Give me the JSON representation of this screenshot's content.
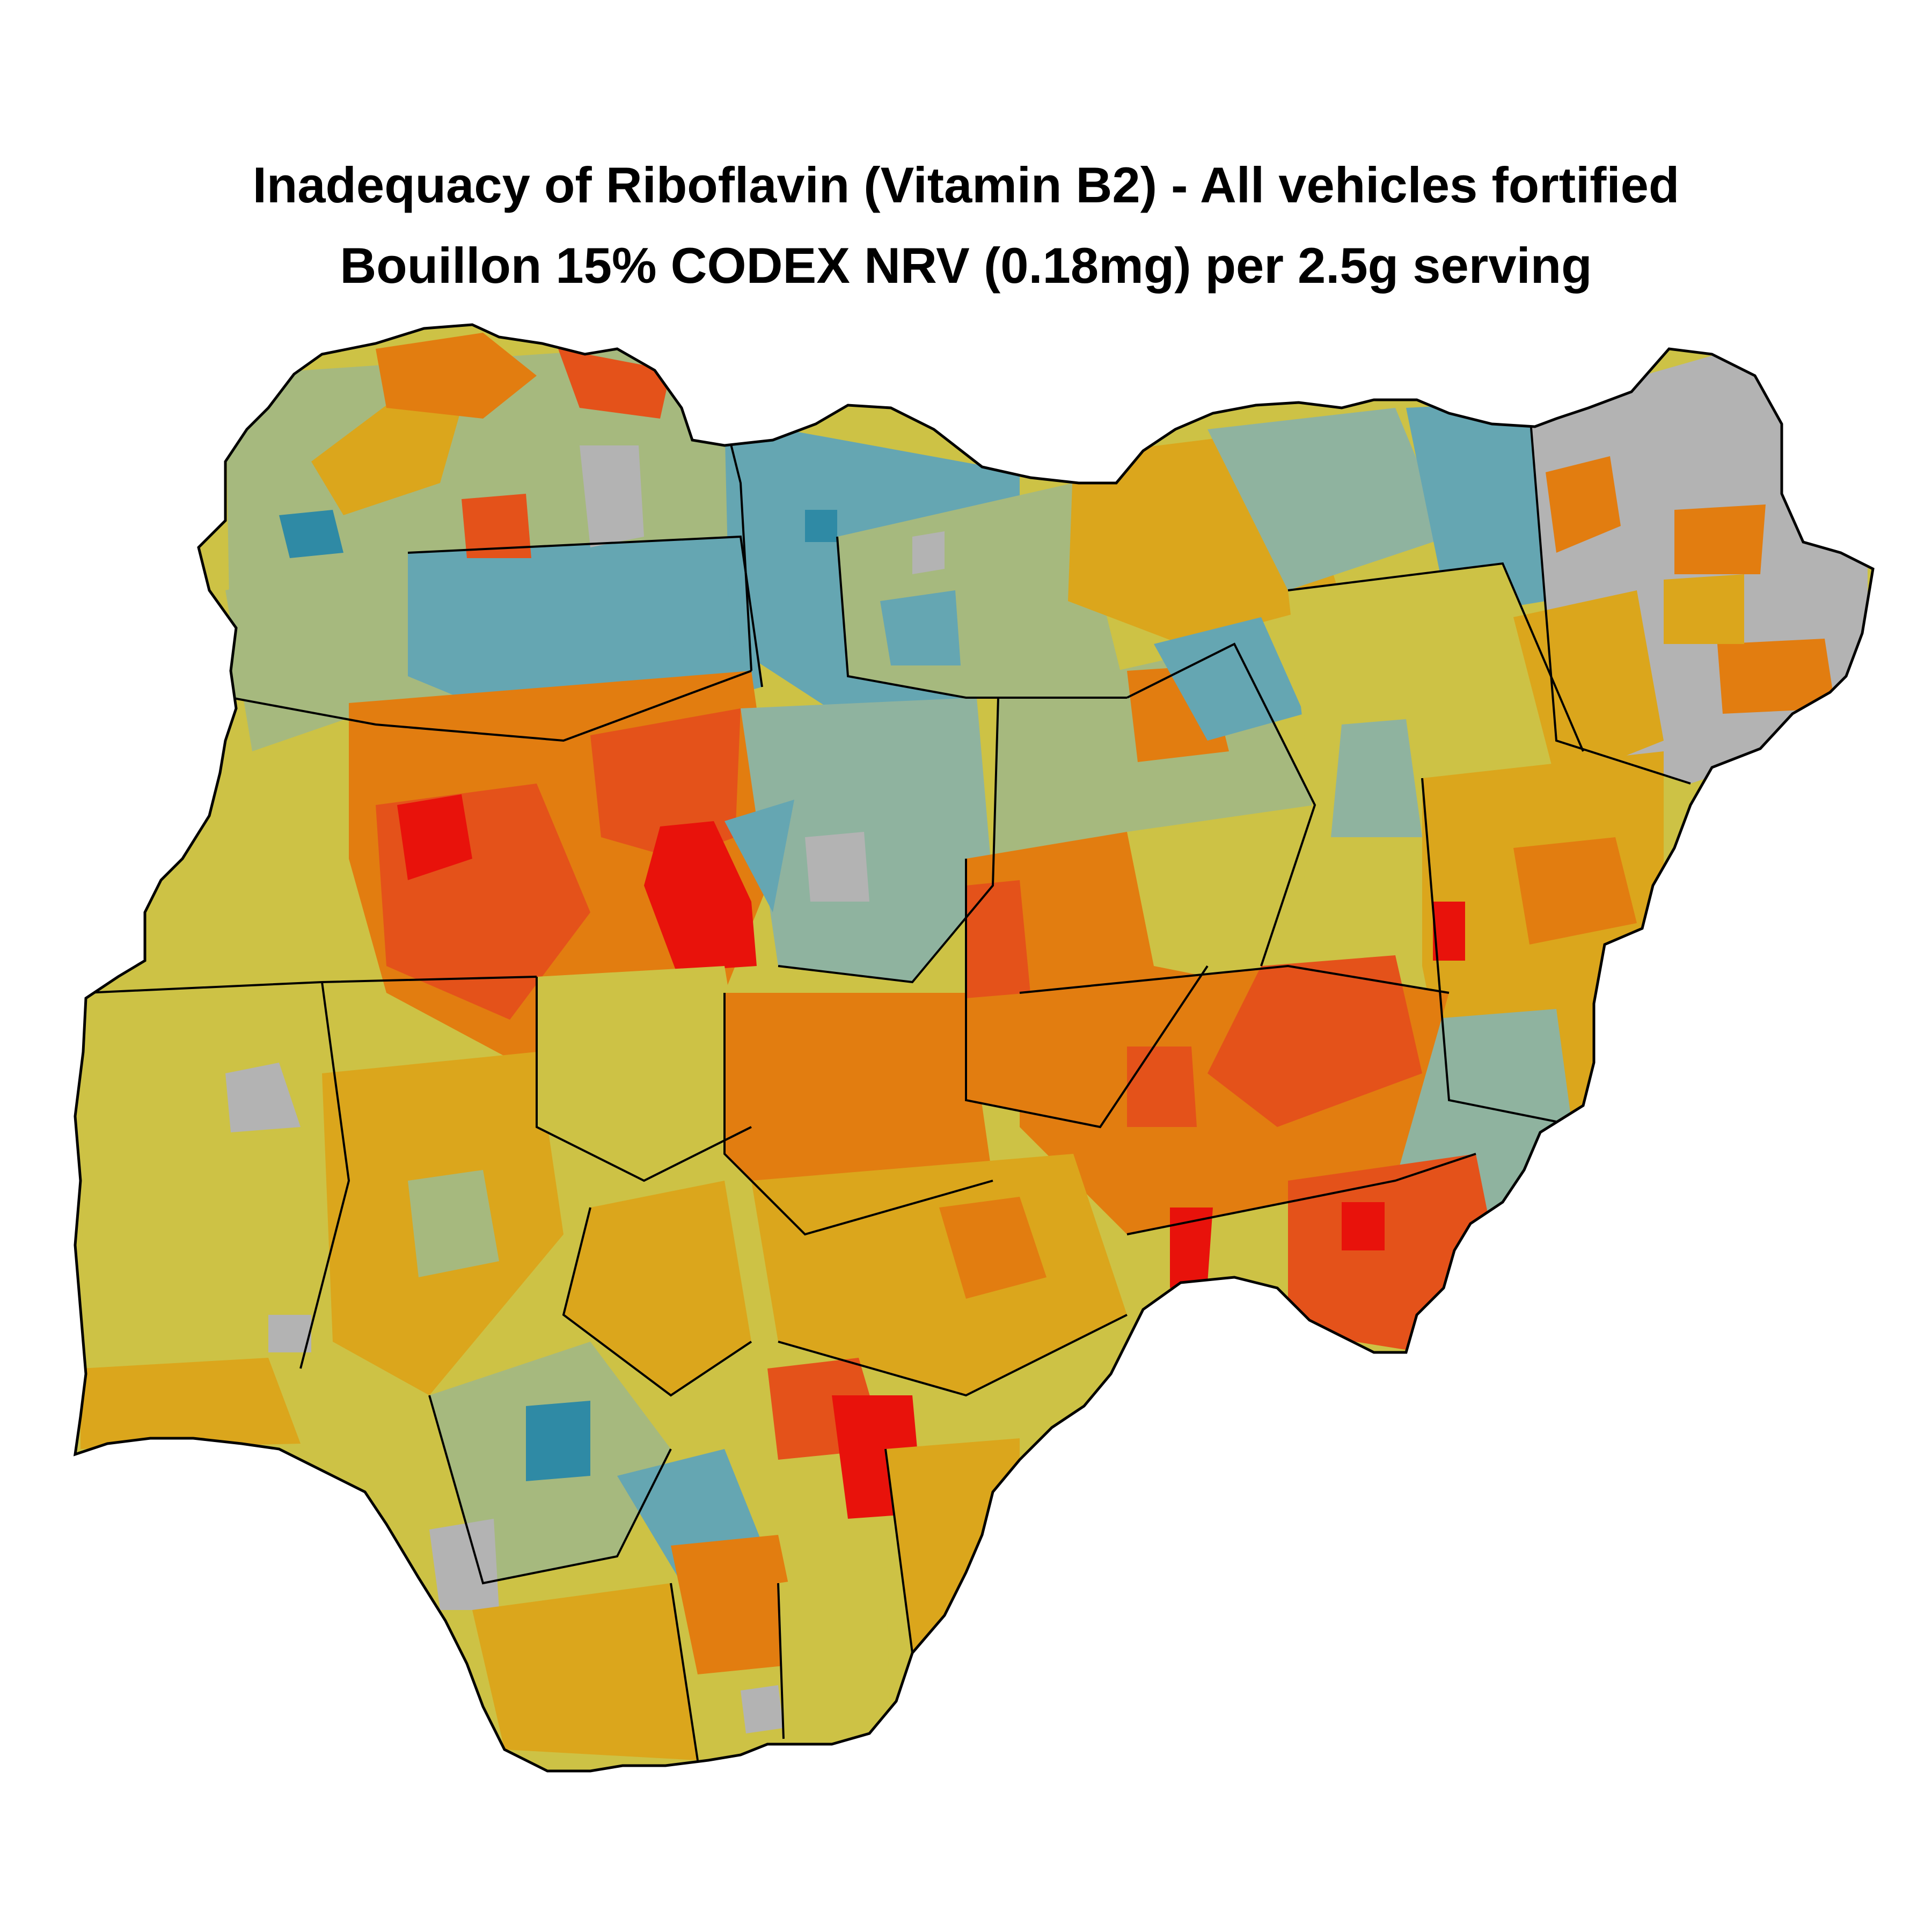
{
  "title": "Inadequacy of Riboflavin (Vitamin B2) - All vehicles fortified",
  "subtitle": "Bouillon 15% CODEX NRV (0.18mg) per 2.5g serving",
  "map": {
    "country": "Nigeria",
    "fill_palette": {
      "very_high": "#e8120b",
      "high": "#e4521a",
      "moderately_high": "#e27d10",
      "moderate": "#dba61c",
      "moderately_low": "#cdc245",
      "low": "#a6b97e",
      "very_low": "#8fb39f",
      "lowest": "#65a6b2",
      "minimal": "#2f8aa5",
      "no_data": "#b3b3b3"
    },
    "border_color": "#000000"
  }
}
